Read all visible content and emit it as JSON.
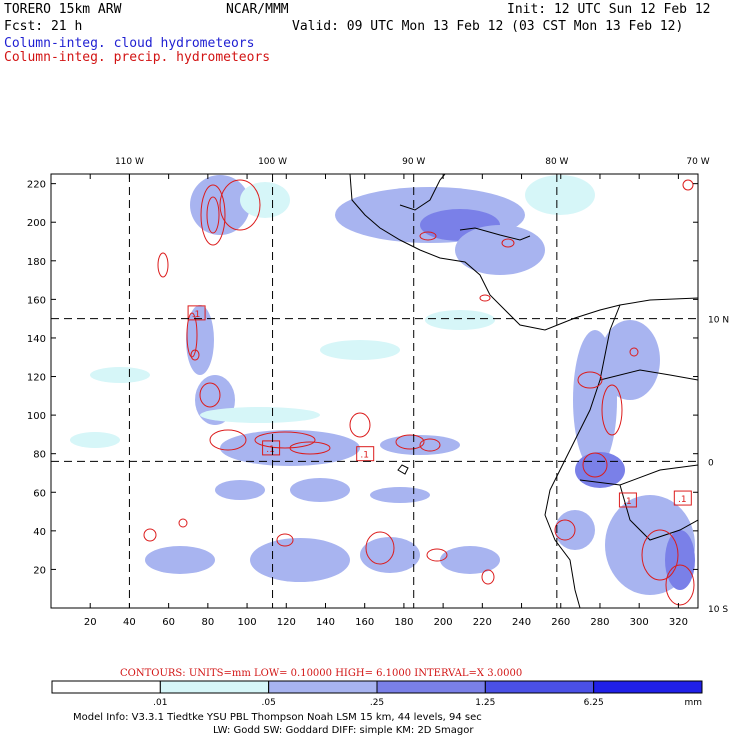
{
  "header": {
    "model": "TORERO  15km ARW",
    "org": "NCAR/MMM",
    "init": "Init: 12 UTC Sun 12 Feb 12",
    "fcst": "Fcst:   21 h",
    "valid": "Valid: 09 UTC Mon 13 Feb 12 (03 CST Mon 13 Feb 12)",
    "field_cloud": "Column-integ. cloud hydrometeors",
    "field_precip": "Column-integ. precip. hydrometeors"
  },
  "chart_data": {
    "type": "heatmap",
    "title": "Column-integ. cloud hydrometeors / Column-integ. precip. hydrometeors",
    "grid_x_ticks": [
      "20",
      "40",
      "60",
      "80",
      "100",
      "120",
      "140",
      "160",
      "180",
      "200",
      "220",
      "240",
      "260",
      "280",
      "300",
      "320"
    ],
    "grid_y_ticks": [
      "20",
      "40",
      "60",
      "80",
      "100",
      "120",
      "140",
      "160",
      "180",
      "200",
      "220"
    ],
    "xlim": [
      0,
      330
    ],
    "ylim": [
      0,
      225
    ],
    "lon_labels": [
      {
        "label": "110 W",
        "x": 40
      },
      {
        "label": "100 W",
        "x": 113
      },
      {
        "label": "90 W",
        "x": 185
      },
      {
        "label": "80 W",
        "x": 258
      },
      {
        "label": "70 W",
        "x": 330
      }
    ],
    "lat_labels": [
      {
        "label": "10 N",
        "y": 150
      },
      {
        "label": "0",
        "y": 76
      },
      {
        "label": "10 S",
        "y": 0
      }
    ],
    "graticule_x": [
      40,
      113,
      185,
      258
    ],
    "graticule_y": [
      150,
      76
    ],
    "contour_low_labels": [
      {
        "label": ".1",
        "x": 74,
        "y": 153
      },
      {
        "label": ".1",
        "x": 112,
        "y": 83
      },
      {
        "label": ".1",
        "x": 160,
        "y": 80
      },
      {
        "label": ".1",
        "x": 294,
        "y": 56
      },
      {
        "label": ".1",
        "x": 322,
        "y": 57
      }
    ],
    "contours": {
      "text": "CONTOURS:  UNITS=mm  LOW= 0.10000    HIGH=  6.1000    INTERVAL=X  3.0000",
      "units": "mm",
      "low": 0.1,
      "high": 6.1,
      "interval": 3.0
    },
    "colorbar": {
      "levels": [
        ".01",
        ".05",
        ".25",
        "1.25",
        "6.25"
      ],
      "units": "mm",
      "colors": [
        "#ffffff",
        "#d6f6f8",
        "#a8b4f0",
        "#7a80e8",
        "#4a50e6",
        "#2020e8"
      ]
    }
  },
  "footer": {
    "line1": "Model Info: V3.3.1    Tiedtke YSU PBL   Thompson     Noah LSM  15 km,    44 levels,    94 sec",
    "line2": "LW: Godd SW: Goddard DIFF: simple KM: 2D Smagor"
  }
}
